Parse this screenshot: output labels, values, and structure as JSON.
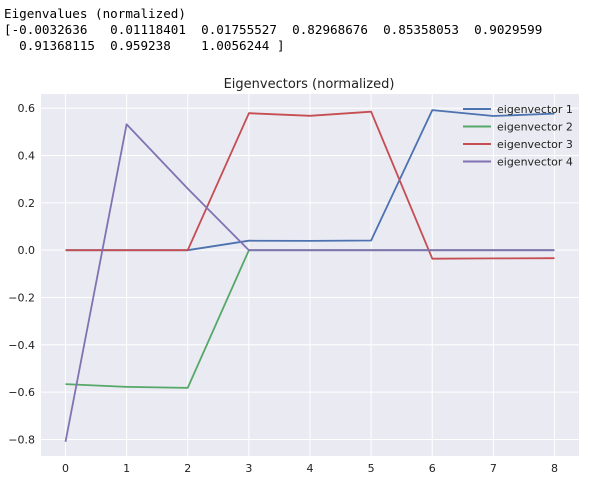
{
  "output": {
    "heading": "Eigenvalues (normalized)",
    "line1": "[-0.0032636   0.01118401  0.01755527  0.82968676  0.85358053  0.9029599",
    "line2": "  0.91368115  0.959238    1.0056244 ]"
  },
  "colors": {
    "background": "#eaeaf2",
    "grid": "#ffffff"
  },
  "chart_data": {
    "type": "line",
    "title": "Eigenvectors (normalized)",
    "xlabel": "",
    "ylabel": "",
    "x": [
      0,
      1,
      2,
      3,
      4,
      5,
      6,
      7,
      8
    ],
    "xlim": [
      -0.4,
      8.4
    ],
    "ylim": [
      -0.87,
      0.66
    ],
    "xticks": [
      0,
      1,
      2,
      3,
      4,
      5,
      6,
      7,
      8
    ],
    "yticks": [
      -0.8,
      -0.6,
      -0.4,
      -0.2,
      0.0,
      0.2,
      0.4,
      0.6
    ],
    "ytick_labels": [
      "−0.8",
      "−0.6",
      "−0.4",
      "−0.2",
      "0.0",
      "0.2",
      "0.4",
      "0.6"
    ],
    "grid": true,
    "legend_position": "top-right",
    "series": [
      {
        "name": "eigenvector 1",
        "color": "#4c72b0",
        "values": [
          0.0,
          0.0,
          0.0,
          0.04,
          0.039,
          0.041,
          0.592,
          0.567,
          0.577
        ]
      },
      {
        "name": "eigenvector 2",
        "color": "#55a868",
        "values": [
          -0.566,
          -0.578,
          -0.582,
          0.0,
          0.0,
          0.0,
          0.0,
          0.0,
          0.0
        ]
      },
      {
        "name": "eigenvector 3",
        "color": "#c44e52",
        "values": [
          0.0,
          0.0,
          0.0,
          0.579,
          0.568,
          0.585,
          -0.036,
          -0.035,
          -0.034
        ]
      },
      {
        "name": "eigenvector 4",
        "color": "#8172b2",
        "values": [
          -0.81,
          0.532,
          0.26,
          0.0,
          0.0,
          0.0,
          0.0,
          0.0,
          0.0
        ]
      }
    ]
  }
}
